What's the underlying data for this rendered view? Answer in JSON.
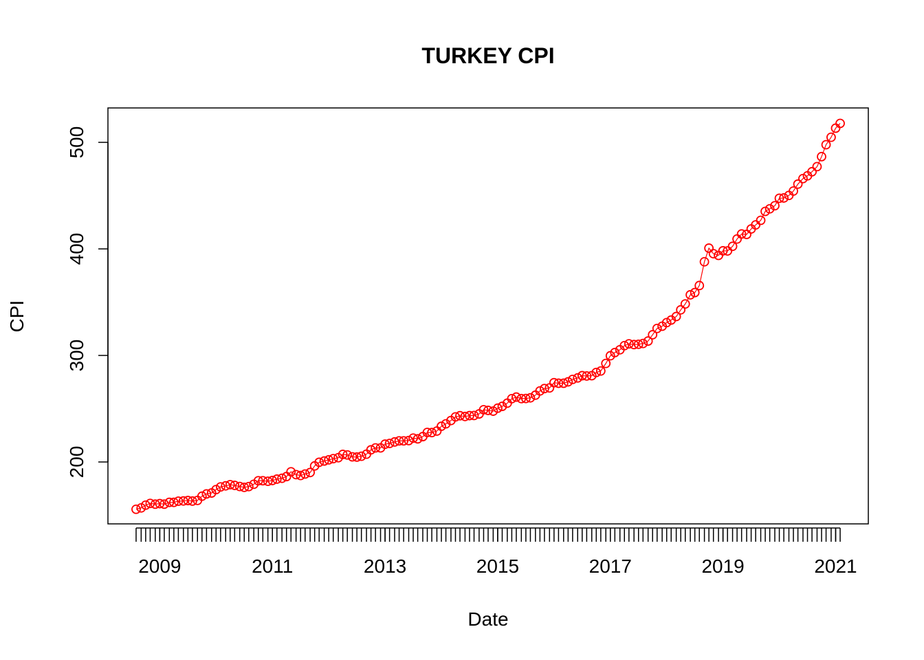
{
  "chart_data": {
    "type": "line",
    "title": "TURKEY CPI",
    "x_label": "Date",
    "y_label": "CPI",
    "color": "#ff0000",
    "x": [
      2008.58,
      2008.67,
      2008.75,
      2008.83,
      2008.92,
      2009.0,
      2009.08,
      2009.17,
      2009.25,
      2009.33,
      2009.42,
      2009.5,
      2009.58,
      2009.67,
      2009.75,
      2009.83,
      2009.92,
      2010.0,
      2010.08,
      2010.17,
      2010.25,
      2010.33,
      2010.42,
      2010.5,
      2010.58,
      2010.67,
      2010.75,
      2010.83,
      2010.92,
      2011.0,
      2011.08,
      2011.17,
      2011.25,
      2011.33,
      2011.42,
      2011.5,
      2011.58,
      2011.67,
      2011.75,
      2011.83,
      2011.92,
      2012.0,
      2012.08,
      2012.17,
      2012.25,
      2012.33,
      2012.42,
      2012.5,
      2012.58,
      2012.67,
      2012.75,
      2012.83,
      2012.92,
      2013.0,
      2013.08,
      2013.17,
      2013.25,
      2013.33,
      2013.42,
      2013.5,
      2013.58,
      2013.67,
      2013.75,
      2013.83,
      2013.92,
      2014.0,
      2014.08,
      2014.17,
      2014.25,
      2014.33,
      2014.42,
      2014.5,
      2014.58,
      2014.67,
      2014.75,
      2014.83,
      2014.92,
      2015.0,
      2015.08,
      2015.17,
      2015.25,
      2015.33,
      2015.42,
      2015.5,
      2015.58,
      2015.67,
      2015.75,
      2015.83,
      2015.92,
      2016.0,
      2016.08,
      2016.17,
      2016.25,
      2016.33,
      2016.42,
      2016.5,
      2016.58,
      2016.67,
      2016.75,
      2016.83,
      2016.92,
      2017.0,
      2017.08,
      2017.17,
      2017.25,
      2017.33,
      2017.42,
      2017.5,
      2017.58,
      2017.67,
      2017.75,
      2017.83,
      2017.92,
      2018.0,
      2018.08,
      2018.17,
      2018.25,
      2018.33,
      2018.42,
      2018.5,
      2018.58,
      2018.67,
      2018.75,
      2018.83,
      2018.92,
      2019.0,
      2019.08,
      2019.17,
      2019.25,
      2019.33,
      2019.42,
      2019.5,
      2019.58,
      2019.67,
      2019.75,
      2019.83,
      2019.92,
      2020.0,
      2020.08,
      2020.17,
      2020.25,
      2020.33,
      2020.42,
      2020.5,
      2020.58,
      2020.67,
      2020.75,
      2020.83,
      2020.92,
      2021.0,
      2021.08
    ],
    "values": [
      155.6,
      156.9,
      159.5,
      161.1,
      160.4,
      160.9,
      160.4,
      162.1,
      162.1,
      163.2,
      163.4,
      163.8,
      163.3,
      163.9,
      167.9,
      170.0,
      170.9,
      174.1,
      176.6,
      177.6,
      178.7,
      178.0,
      177.0,
      176.2,
      176.9,
      179.1,
      182.4,
      182.4,
      181.9,
      182.6,
      183.9,
      184.7,
      186.3,
      190.8,
      188.1,
      187.3,
      188.7,
      190.1,
      196.3,
      199.7,
      200.9,
      202.0,
      203.1,
      204.0,
      207.1,
      206.6,
      204.8,
      204.6,
      205.4,
      207.3,
      211.4,
      213.2,
      213.2,
      216.7,
      217.4,
      218.8,
      219.8,
      219.8,
      220.1,
      222.4,
      221.7,
      223.8,
      227.7,
      227.6,
      229.0,
      233.5,
      235.8,
      238.9,
      242.3,
      243.4,
      242.7,
      243.5,
      243.6,
      245.1,
      249.0,
      248.4,
      247.7,
      250.5,
      252.2,
      255.2,
      259.4,
      260.9,
      259.5,
      259.6,
      260.2,
      262.7,
      266.7,
      268.9,
      269.5,
      274.4,
      273.9,
      273.9,
      275.2,
      277.5,
      278.9,
      281.0,
      280.7,
      281.0,
      284.0,
      285.4,
      292.5,
      299.7,
      302.7,
      305.3,
      309.2,
      310.9,
      310.2,
      310.5,
      311.2,
      313.5,
      319.4,
      325.3,
      327.4,
      330.8,
      333.2,
      336.5,
      342.8,
      348.3,
      356.9,
      359.0,
      365.6,
      387.9,
      400.7,
      395.5,
      393.9,
      398.2,
      398.1,
      402.4,
      409.3,
      414.0,
      413.6,
      418.7,
      422.5,
      426.8,
      435.2,
      437.6,
      440.5,
      447.5,
      447.8,
      450.2,
      454.3,
      460.8,
      466.0,
      468.6,
      472.4,
      477.2,
      486.6,
      497.8,
      504.8,
      513.3,
      517.8
    ],
    "xlim": [
      2008.08,
      2021.58
    ],
    "xticks": [
      2009,
      2011,
      2013,
      2015,
      2017,
      2019,
      2021
    ],
    "ylim": [
      141.9,
      532.3
    ],
    "yticks": [
      200,
      300,
      400,
      500
    ]
  }
}
